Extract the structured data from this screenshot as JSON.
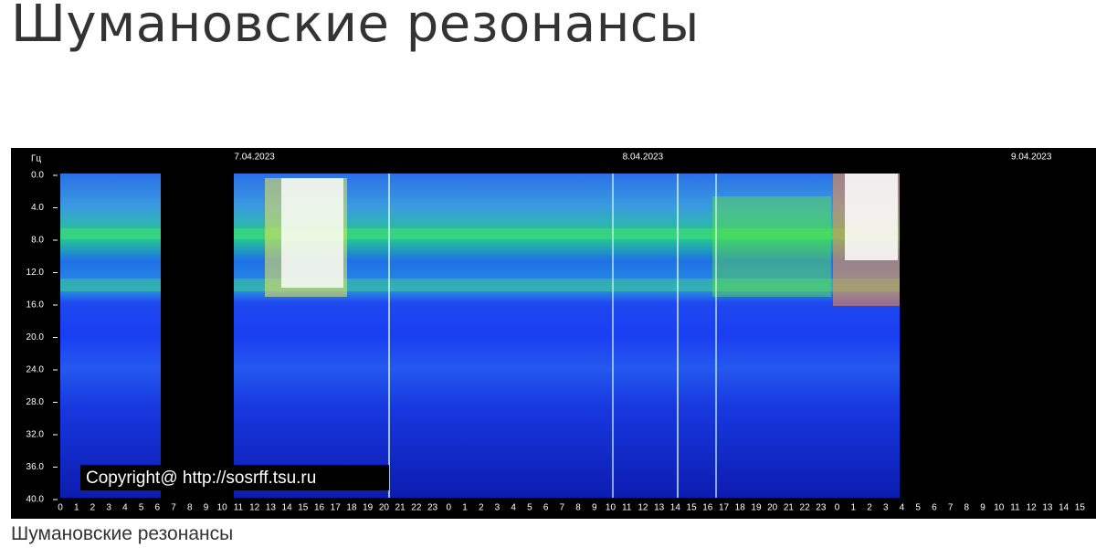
{
  "header": {
    "title": "Шумановские резонансы"
  },
  "figure": {
    "y_unit": "Гц",
    "dates": [
      "7.04.2023",
      "8.04.2023",
      "9.04.2023"
    ],
    "y_labels": [
      "0.0",
      "4.0",
      "8.0",
      "12.0",
      "16.0",
      "20.0",
      "24.0",
      "28.0",
      "32.0",
      "36.0",
      "40.0"
    ],
    "x_labels": [
      "0",
      "1",
      "2",
      "3",
      "4",
      "5",
      "6",
      "7",
      "8",
      "9",
      "10",
      "11",
      "12",
      "13",
      "14",
      "15",
      "16",
      "17",
      "18",
      "19",
      "20",
      "21",
      "22",
      "23",
      "0",
      "1",
      "2",
      "3",
      "4",
      "5",
      "6",
      "7",
      "8",
      "9",
      "10",
      "11",
      "12",
      "13",
      "14",
      "15",
      "16",
      "17",
      "18",
      "19",
      "20",
      "21",
      "22",
      "23",
      "0",
      "1",
      "2",
      "3",
      "4",
      "5",
      "6",
      "7",
      "8",
      "9",
      "10",
      "11",
      "12",
      "13",
      "14",
      "15"
    ],
    "copyright": "Copyright@ http://sosrff.tsu.ru",
    "caption": "Шумановские резонансы"
  }
}
